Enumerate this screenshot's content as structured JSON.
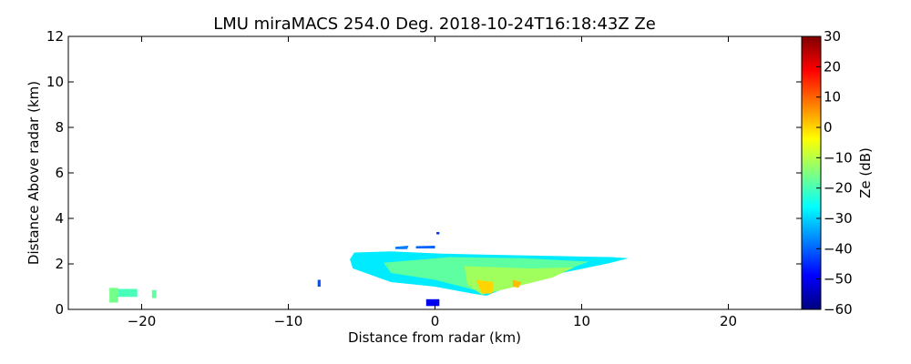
{
  "chart_data": {
    "type": "heatmap",
    "title": "LMU miraMACS 254.0 Deg. 2018-10-24T16:18:43Z  Ze",
    "xlabel": "Distance from radar (km)",
    "ylabel": "Distance Above radar  (km)",
    "xlim": [
      -25,
      25
    ],
    "ylim": [
      0,
      12
    ],
    "x_ticks": [
      -20,
      -10,
      0,
      10,
      20
    ],
    "x_tick_labels": [
      "−20",
      "−10",
      "0",
      "10",
      "20"
    ],
    "y_ticks": [
      0,
      2,
      4,
      6,
      8,
      10,
      12
    ],
    "y_tick_labels": [
      "0",
      "2",
      "4",
      "6",
      "8",
      "10",
      "12"
    ],
    "colorbar": {
      "label": "Ze (dB)",
      "range": [
        -60,
        30
      ],
      "ticks": [
        30,
        20,
        10,
        0,
        -10,
        -20,
        -30,
        -40,
        -50,
        -60
      ],
      "tick_labels": [
        "30",
        "20",
        "10",
        "0",
        "−10",
        "−20",
        "−30",
        "−40",
        "−50",
        "−60"
      ],
      "colormap": [
        "#00007f",
        "#0000ff",
        "#007fff",
        "#00ffff",
        "#7fff7f",
        "#ffff00",
        "#ff7f00",
        "#ff0000",
        "#7f0000"
      ]
    },
    "echo_regions": [
      {
        "name": "main-echo",
        "ze_db": -28,
        "polygon_km": [
          [
            -5.8,
            2.2
          ],
          [
            -5.5,
            2.5
          ],
          [
            -3.0,
            2.55
          ],
          [
            0.5,
            2.45
          ],
          [
            4.0,
            2.4
          ],
          [
            8.0,
            2.35
          ],
          [
            12.0,
            2.3
          ],
          [
            13.2,
            2.25
          ],
          [
            12.0,
            2.05
          ],
          [
            9.0,
            1.65
          ],
          [
            6.0,
            1.25
          ],
          [
            3.5,
            0.6
          ],
          [
            2.5,
            0.7
          ],
          [
            0.0,
            1.0
          ],
          [
            -3.0,
            1.2
          ],
          [
            -5.6,
            1.8
          ]
        ]
      },
      {
        "name": "mid-layer",
        "ze_db": -18,
        "polygon_km": [
          [
            -3.5,
            2.05
          ],
          [
            1.0,
            2.3
          ],
          [
            6.0,
            2.25
          ],
          [
            10.5,
            2.1
          ],
          [
            9.0,
            1.75
          ],
          [
            6.0,
            1.35
          ],
          [
            3.0,
            0.8
          ],
          [
            0.0,
            1.3
          ],
          [
            -3.0,
            1.6
          ]
        ]
      },
      {
        "name": "core-echo",
        "ze_db": -12,
        "polygon_km": [
          [
            2.0,
            1.9
          ],
          [
            6.5,
            1.8
          ],
          [
            9.5,
            1.85
          ],
          [
            8.0,
            1.4
          ],
          [
            5.5,
            1.0
          ],
          [
            3.2,
            0.65
          ],
          [
            2.2,
            1.1
          ]
        ]
      },
      {
        "name": "max-echo",
        "ze_db": 0,
        "polygon_km": [
          [
            2.8,
            1.3
          ],
          [
            4.0,
            1.2
          ],
          [
            3.9,
            0.7
          ],
          [
            3.2,
            0.7
          ]
        ]
      },
      {
        "name": "max-echo-2",
        "ze_db": 2,
        "polygon_km": [
          [
            5.3,
            1.3
          ],
          [
            5.9,
            1.2
          ],
          [
            5.7,
            0.95
          ],
          [
            5.3,
            1.0
          ]
        ]
      },
      {
        "name": "upper-fragment",
        "ze_db": -38,
        "polygon_km": [
          [
            -2.7,
            2.75
          ],
          [
            -1.8,
            2.8
          ],
          [
            -1.9,
            2.65
          ],
          [
            -2.7,
            2.65
          ]
        ]
      },
      {
        "name": "upper-fragment-2",
        "ze_db": -40,
        "polygon_km": [
          [
            -1.3,
            2.78
          ],
          [
            0.0,
            2.8
          ],
          [
            0.0,
            2.68
          ],
          [
            -1.3,
            2.68
          ]
        ]
      },
      {
        "name": "near-ground-echo",
        "ze_db": -50,
        "polygon_km": [
          [
            -0.6,
            0.45
          ],
          [
            0.3,
            0.45
          ],
          [
            0.3,
            0.15
          ],
          [
            -0.6,
            0.15
          ]
        ]
      },
      {
        "name": "ground-clutter",
        "ze_db": -16,
        "polygon_km": [
          [
            -22.2,
            0.95
          ],
          [
            -21.6,
            0.95
          ],
          [
            -21.6,
            0.3
          ],
          [
            -22.2,
            0.3
          ]
        ]
      },
      {
        "name": "ground-clutter-2",
        "ze_db": -20,
        "polygon_km": [
          [
            -21.6,
            0.9
          ],
          [
            -20.3,
            0.9
          ],
          [
            -20.3,
            0.55
          ],
          [
            -21.6,
            0.55
          ]
        ]
      },
      {
        "name": "ground-clutter-3",
        "ze_db": -18,
        "polygon_km": [
          [
            -19.3,
            0.85
          ],
          [
            -19.0,
            0.85
          ],
          [
            -19.0,
            0.5
          ],
          [
            -19.3,
            0.5
          ]
        ]
      },
      {
        "name": "isolated-speck",
        "ze_db": -42,
        "polygon_km": [
          [
            -8.0,
            1.3
          ],
          [
            -7.8,
            1.3
          ],
          [
            -7.8,
            1.0
          ],
          [
            -8.0,
            1.0
          ]
        ]
      },
      {
        "name": "isolated-speck-2",
        "ze_db": -45,
        "polygon_km": [
          [
            0.1,
            3.4
          ],
          [
            0.3,
            3.4
          ],
          [
            0.3,
            3.3
          ],
          [
            0.1,
            3.3
          ]
        ]
      }
    ]
  }
}
